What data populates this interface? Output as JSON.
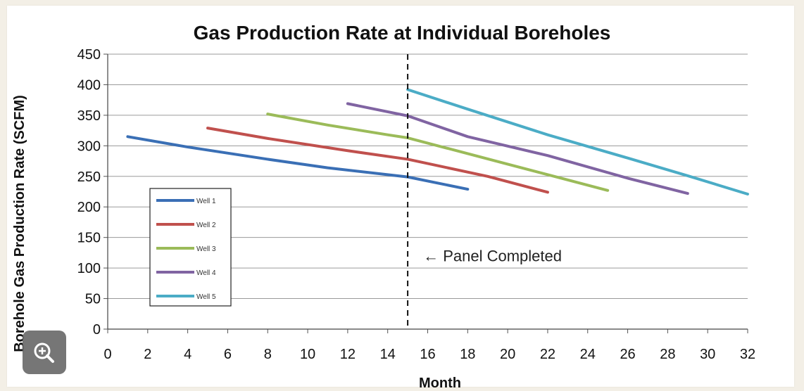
{
  "chart_data": {
    "type": "line",
    "title": "Gas Production Rate at Individual Boreholes",
    "xlabel": "Month",
    "ylabel": "Borehole Gas Production Rate (SCFM)",
    "xlim": [
      0,
      32
    ],
    "ylim": [
      0,
      450
    ],
    "x_ticks": [
      "0",
      "2",
      "4",
      "6",
      "8",
      "10",
      "12",
      "14",
      "16",
      "18",
      "20",
      "22",
      "24",
      "26",
      "28",
      "30",
      "32"
    ],
    "y_ticks": [
      "0",
      "50",
      "100",
      "150",
      "200",
      "250",
      "300",
      "350",
      "400",
      "450"
    ],
    "grid": "horizontal",
    "legend_position": "bottom-left",
    "series": [
      {
        "name": "Well 1",
        "color": "#3a6fb5",
        "x": [
          1,
          4,
          8,
          11,
          15,
          18
        ],
        "y": [
          315,
          298,
          278,
          264,
          249,
          229
        ]
      },
      {
        "name": "Well 2",
        "color": "#c0504d",
        "x": [
          5,
          8,
          12,
          15,
          19,
          22
        ],
        "y": [
          329,
          312,
          292,
          278,
          250,
          224
        ]
      },
      {
        "name": "Well 3",
        "color": "#9bbb59",
        "x": [
          8,
          11,
          14,
          15,
          20,
          25
        ],
        "y": [
          352,
          334,
          318,
          313,
          270,
          227
        ]
      },
      {
        "name": "Well 4",
        "color": "#8064a2",
        "x": [
          12,
          15,
          18,
          22,
          26,
          29
        ],
        "y": [
          369,
          349,
          315,
          284,
          247,
          222
        ]
      },
      {
        "name": "Well 5",
        "color": "#4bacc6",
        "x": [
          15,
          18,
          22,
          26,
          29,
          32
        ],
        "y": [
          392,
          360,
          318,
          280,
          251,
          221
        ]
      }
    ],
    "vertical_marker": {
      "x": 15,
      "style": "dashed",
      "annotation": "← Panel Completed",
      "annotation_y": 120
    }
  },
  "controls": {
    "zoom_icon": "zoom-in-icon"
  }
}
